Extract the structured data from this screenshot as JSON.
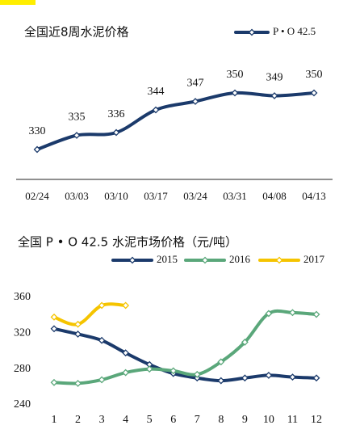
{
  "chart_data": [
    {
      "type": "line",
      "title": "全国近8周水泥价格",
      "categories": [
        "02/24",
        "03/03",
        "03/10",
        "03/17",
        "03/24",
        "03/31",
        "04/08",
        "04/13"
      ],
      "series": [
        {
          "name": "P • O 42.5",
          "color": "#1b3a6b",
          "values": [
            330,
            335,
            336,
            344,
            347,
            350,
            349,
            350
          ]
        }
      ],
      "data_labels": true
    },
    {
      "type": "line",
      "title": "全国 P • O 42.5 水泥市场价格（元/吨）",
      "categories": [
        1,
        2,
        3,
        4,
        5,
        6,
        7,
        8,
        9,
        10,
        11,
        12
      ],
      "series": [
        {
          "name": "2015",
          "color": "#1b3a6b",
          "values": [
            325,
            319,
            312,
            298,
            285,
            275,
            270,
            267,
            270,
            273,
            271,
            270
          ]
        },
        {
          "name": "2016",
          "color": "#5aa77a",
          "values": [
            265,
            264,
            268,
            276,
            280,
            278,
            274,
            288,
            310,
            342,
            343,
            341
          ]
        },
        {
          "name": "2017",
          "color": "#f5c400",
          "values": [
            338,
            330,
            351,
            351,
            null,
            null,
            null,
            null,
            null,
            null,
            null,
            null
          ]
        }
      ],
      "ylim": [
        240,
        360
      ],
      "yticks": [
        240,
        280,
        320,
        360
      ],
      "grid": false
    }
  ]
}
